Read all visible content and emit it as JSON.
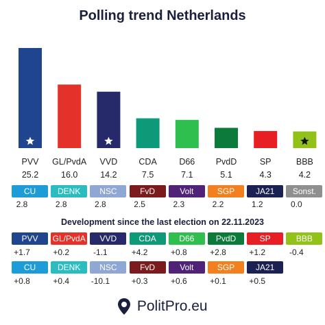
{
  "title": "Polling trend Netherlands",
  "colors": {
    "star": "#ffffff",
    "star_dark": "#111111"
  },
  "chart_data": {
    "type": "bar",
    "title": "Polling trend Netherlands",
    "categories": [
      "PVV",
      "GL/PvdA",
      "VVD",
      "CDA",
      "D66",
      "PvdD",
      "SP",
      "BBB"
    ],
    "values": [
      25.2,
      16.0,
      14.2,
      7.5,
      7.1,
      5.1,
      4.3,
      4.2
    ],
    "value_labels": [
      "25.2",
      "16.0",
      "14.2",
      "7.5",
      "7.1",
      "5.1",
      "4.3",
      "4.2"
    ],
    "colors": [
      "#20458f",
      "#e4322b",
      "#262a6b",
      "#0e9a79",
      "#2ebf4f",
      "#0c7a3a",
      "#e81e25",
      "#92c21a"
    ],
    "stars": [
      true,
      false,
      true,
      false,
      false,
      false,
      false,
      true
    ],
    "ylim": [
      0,
      25.2
    ],
    "grid": false
  },
  "small_parties": [
    {
      "name": "CU",
      "value": "2.8",
      "color": "#1e9cd8"
    },
    {
      "name": "DENK",
      "value": "2.8",
      "color": "#2bbcc0"
    },
    {
      "name": "NSC",
      "value": "2.8",
      "color": "#8fa7d4"
    },
    {
      "name": "FvD",
      "value": "2.5",
      "color": "#7c1b1e"
    },
    {
      "name": "Volt",
      "value": "2.3",
      "color": "#502379"
    },
    {
      "name": "SGP",
      "value": "2.2",
      "color": "#f3801e"
    },
    {
      "name": "JA21",
      "value": "1.2",
      "color": "#1b2153"
    },
    {
      "name": "Sonst.",
      "value": "0.0",
      "color": "#8f8f8f"
    }
  ],
  "development": {
    "title": "Development since the last election on 22.11.2023",
    "row1": [
      {
        "name": "PVV",
        "value": "+1.7",
        "color": "#20458f"
      },
      {
        "name": "GL/PvdA",
        "value": "+0.2",
        "color": "#e4322b"
      },
      {
        "name": "VVD",
        "value": "-1.1",
        "color": "#262a6b"
      },
      {
        "name": "CDA",
        "value": "+4.2",
        "color": "#0e9a79"
      },
      {
        "name": "D66",
        "value": "+0.8",
        "color": "#2ebf4f"
      },
      {
        "name": "PvdD",
        "value": "+2.8",
        "color": "#0c7a3a"
      },
      {
        "name": "SP",
        "value": "+1.2",
        "color": "#e81e25"
      },
      {
        "name": "BBB",
        "value": "-0.4",
        "color": "#92c21a"
      }
    ],
    "row2": [
      {
        "name": "CU",
        "value": "+0.8",
        "color": "#1e9cd8"
      },
      {
        "name": "DENK",
        "value": "+0.4",
        "color": "#2bbcc0"
      },
      {
        "name": "NSC",
        "value": "-10.1",
        "color": "#8fa7d4"
      },
      {
        "name": "FvD",
        "value": "+0.3",
        "color": "#7c1b1e"
      },
      {
        "name": "Volt",
        "value": "+0.6",
        "color": "#502379"
      },
      {
        "name": "SGP",
        "value": "+0.1",
        "color": "#f3801e"
      },
      {
        "name": "JA21",
        "value": "+0.5",
        "color": "#1b2153"
      }
    ]
  },
  "footer": {
    "brand": "PolitPro.eu",
    "logo_icon": "map-pin-icon",
    "logo_color": "#1a1f3c"
  }
}
